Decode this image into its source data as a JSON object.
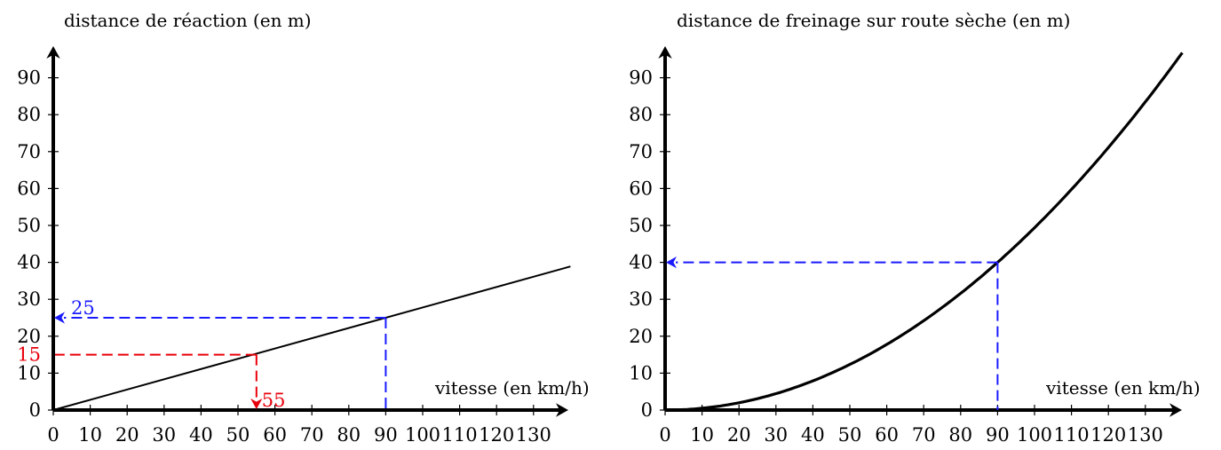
{
  "chart_data": [
    {
      "type": "line",
      "title": "",
      "ylabel": "distance de réaction (en m)",
      "xlabel": "vitesse (en km/h)",
      "xlim": [
        0,
        140
      ],
      "ylim": [
        0,
        100
      ],
      "xticks": [
        0,
        10,
        20,
        30,
        40,
        50,
        60,
        70,
        80,
        90,
        100,
        110,
        120,
        130
      ],
      "yticks": [
        0,
        10,
        20,
        30,
        40,
        50,
        60,
        70,
        80,
        90
      ],
      "grid": false,
      "series": [
        {
          "x": [
            0,
            140
          ],
          "y": [
            0,
            38.9
          ]
        }
      ],
      "annotations": [
        {
          "color": "#e8000b",
          "point_x": 55,
          "point_y": 15,
          "y_label": "15",
          "x_label": "55"
        },
        {
          "color": "#1a1aff",
          "point_x": 90,
          "point_y": 25,
          "y_label": "25"
        }
      ]
    },
    {
      "type": "line",
      "title": "",
      "ylabel": "distance de freinage sur route sèche (en m)",
      "xlabel": "vitesse (en km/h)",
      "xlim": [
        0,
        140
      ],
      "ylim": [
        0,
        100
      ],
      "xticks": [
        0,
        10,
        20,
        30,
        40,
        50,
        60,
        70,
        80,
        90,
        100,
        110,
        120,
        130
      ],
      "yticks": [
        0,
        10,
        20,
        30,
        40,
        50,
        60,
        70,
        80,
        90
      ],
      "grid": false,
      "series": [
        {
          "x": [
            0,
            10,
            20,
            30,
            40,
            50,
            60,
            70,
            80,
            90,
            100,
            110,
            120,
            130,
            140
          ],
          "y": [
            0,
            0.49,
            1.98,
            4.44,
            7.9,
            12.3,
            17.8,
            24.2,
            31.6,
            40,
            49.4,
            59.8,
            71.1,
            83.5,
            96.8
          ]
        }
      ],
      "annotations": [
        {
          "color": "#1a1aff",
          "point_x": 90,
          "point_y": 40,
          "y_label": ""
        }
      ]
    }
  ]
}
